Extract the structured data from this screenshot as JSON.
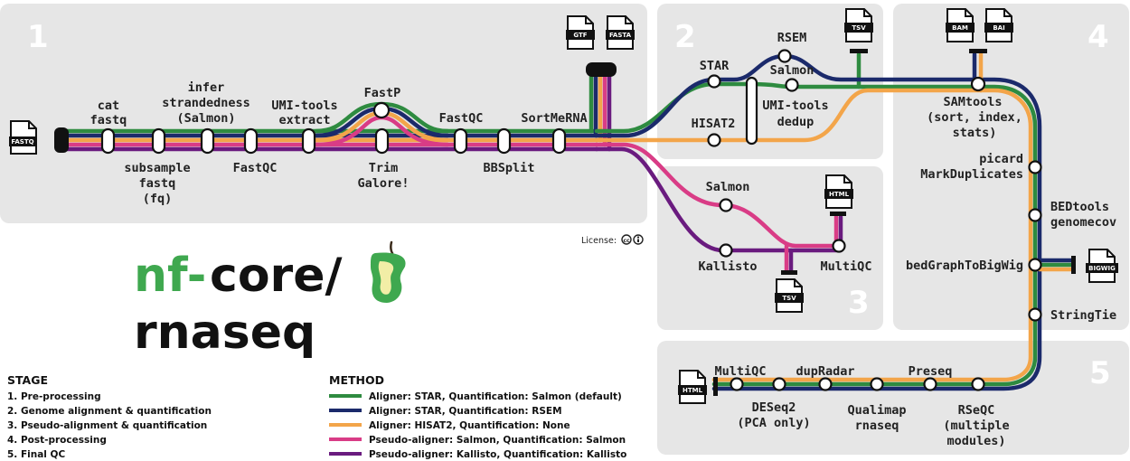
{
  "colors": {
    "green": "#2e8b40",
    "navy": "#1b2a6b",
    "orange": "#f3a54a",
    "pink": "#d93c86",
    "purple": "#6a1b7f",
    "panel": "#e6e6e6",
    "brand_green": "#3fa84f"
  },
  "stages": {
    "s1": "1",
    "s2": "2",
    "s3": "3",
    "s4": "4",
    "s5": "5"
  },
  "labels": {
    "cat": "cat",
    "fastq": "fastq",
    "infer1": "infer",
    "infer2": "strandedness",
    "infer3": "(Salmon)",
    "umi1": "UMI-tools",
    "umi2": "extract",
    "fastp": "FastP",
    "fastqc1": "FastQC",
    "sortmerna": "SortMeRNA",
    "subsample1": "subsample",
    "subsample2": "fastq",
    "subsample3": "(fq)",
    "fastqc2": "FastQC",
    "trim1": "Trim",
    "trim2": "Galore!",
    "bbsplit": "BBSplit",
    "rsem": "RSEM",
    "star": "STAR",
    "salmon2": "Salmon",
    "hisat2": "HISAT2",
    "umidedup1": "UMI-tools",
    "umidedup2": "dedup",
    "salmon3": "Salmon",
    "kallisto": "Kallisto",
    "multiqc3": "MultiQC",
    "samtools1": "SAMtools",
    "samtools2": "(sort, index,",
    "samtools3": "stats)",
    "picard1": "picard",
    "picard2": "MarkDuplicates",
    "bedtools1": "BEDtools",
    "bedtools2": "genomecov",
    "bedgraph": "bedGraphToBigWig",
    "stringtie": "StringTie",
    "multiqc5": "MultiQC",
    "dupradar": "dupRadar",
    "preseq": "Preseq",
    "deseq1": "DESeq2",
    "deseq2": "(PCA only)",
    "qualimap1": "Qualimap",
    "qualimap2": "rnaseq",
    "rseqc1": "RSeQC",
    "rseqc2": "(multiple",
    "rseqc3": "modules)"
  },
  "files": {
    "fastq": "FASTQ",
    "gtf": "GTF",
    "fasta": "FASTA",
    "tsv2": "TSV",
    "bam": "BAM",
    "bai": "BAI",
    "html3": "HTML",
    "tsv3": "TSV",
    "bigwig": "BIGWIG",
    "html5": "HTML"
  },
  "license_label": "License:",
  "logo": {
    "nf": "nf-",
    "core": "core/",
    "pipeline": "rnaseq"
  },
  "legend": {
    "stage_title": "STAGE",
    "stages": [
      "1. Pre-processing",
      "2. Genome alignment & quantification",
      "3. Pseudo-alignment & quantification",
      "4. Post-processing",
      "5. Final QC"
    ],
    "method_title": "METHOD",
    "methods": [
      {
        "color": "#2e8b40",
        "label": "Aligner: STAR, Quantification: Salmon (default)"
      },
      {
        "color": "#1b2a6b",
        "label": "Aligner: STAR, Quantification: RSEM"
      },
      {
        "color": "#f3a54a",
        "label": "Aligner: HISAT2, Quantification: None"
      },
      {
        "color": "#d93c86",
        "label": "Pseudo-aligner: Salmon, Quantification: Salmon"
      },
      {
        "color": "#6a1b7f",
        "label": "Pseudo-aligner: Kallisto, Quantification: Kallisto"
      }
    ]
  }
}
